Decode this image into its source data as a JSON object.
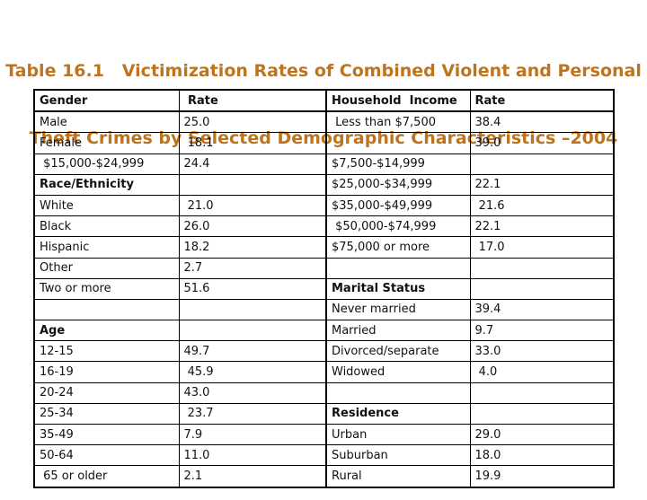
{
  "title": {
    "line1": "Table 16.1   Victimization Rates of Combined Violent and Personal",
    "line2": "Theft Crimes by Selected Demographic Characteristics –2004",
    "color": "#be741f"
  },
  "table": {
    "columns": [
      "Gender",
      "Rate",
      "Household Income",
      "Rate"
    ],
    "rows": [
      {
        "cells": [
          {
            "t": "Gender",
            "b": true
          },
          {
            "t": " Rate",
            "b": true
          },
          {
            "t": "Household  Income",
            "b": true
          },
          {
            "t": "Rate",
            "b": true
          }
        ]
      },
      {
        "cells": [
          {
            "t": "Male"
          },
          {
            "t": "25.0"
          },
          {
            "t": " Less than $7,500"
          },
          {
            "t": "38.4"
          }
        ]
      },
      {
        "cells": [
          {
            "t": "Female"
          },
          {
            "t": " 18.1"
          },
          {
            "t": ""
          },
          {
            "t": "39.0"
          }
        ]
      },
      {
        "cells": [
          {
            "t": " $15,000-$24,999"
          },
          {
            "t": "24.4"
          },
          {
            "t": "$7,500-$14,999"
          },
          {
            "t": ""
          }
        ]
      },
      {
        "cells": [
          {
            "t": "Race/Ethnicity",
            "b": true
          },
          {
            "t": ""
          },
          {
            "t": "$25,000-$34,999"
          },
          {
            "t": "22.1"
          }
        ]
      },
      {
        "cells": [
          {
            "t": "White"
          },
          {
            "t": " 21.0"
          },
          {
            "t": "$35,000-$49,999"
          },
          {
            "t": " 21.6"
          }
        ]
      },
      {
        "cells": [
          {
            "t": "Black"
          },
          {
            "t": "26.0"
          },
          {
            "t": " $50,000-$74,999"
          },
          {
            "t": "22.1"
          }
        ]
      },
      {
        "cells": [
          {
            "t": "Hispanic"
          },
          {
            "t": "18.2"
          },
          {
            "t": "$75,000 or more"
          },
          {
            "t": " 17.0"
          }
        ]
      },
      {
        "cells": [
          {
            "t": "Other"
          },
          {
            "t": "2.7"
          },
          {
            "t": ""
          },
          {
            "t": ""
          }
        ]
      },
      {
        "cells": [
          {
            "t": "Two or more"
          },
          {
            "t": "51.6"
          },
          {
            "t": "Marital Status",
            "b": true
          },
          {
            "t": ""
          }
        ]
      },
      {
        "cells": [
          {
            "t": ""
          },
          {
            "t": ""
          },
          {
            "t": "Never married"
          },
          {
            "t": "39.4"
          }
        ]
      },
      {
        "cells": [
          {
            "t": "Age",
            "b": true
          },
          {
            "t": ""
          },
          {
            "t": "Married"
          },
          {
            "t": "9.7"
          }
        ]
      },
      {
        "cells": [
          {
            "t": "12-15"
          },
          {
            "t": "49.7"
          },
          {
            "t": "Divorced/separate"
          },
          {
            "t": "33.0"
          }
        ]
      },
      {
        "cells": [
          {
            "t": "16-19"
          },
          {
            "t": " 45.9"
          },
          {
            "t": "Widowed"
          },
          {
            "t": " 4.0"
          }
        ]
      },
      {
        "cells": [
          {
            "t": "20-24"
          },
          {
            "t": "43.0"
          },
          {
            "t": ""
          },
          {
            "t": ""
          }
        ]
      },
      {
        "cells": [
          {
            "t": "25-34"
          },
          {
            "t": " 23.7"
          },
          {
            "t": "Residence",
            "b": true
          },
          {
            "t": ""
          }
        ]
      },
      {
        "cells": [
          {
            "t": "35-49"
          },
          {
            "t": "7.9"
          },
          {
            "t": "Urban"
          },
          {
            "t": "29.0"
          }
        ]
      },
      {
        "cells": [
          {
            "t": "50-64"
          },
          {
            "t": "11.0"
          },
          {
            "t": "Suburban"
          },
          {
            "t": "18.0"
          }
        ]
      },
      {
        "cells": [
          {
            "t": " 65 or older"
          },
          {
            "t": "2.1"
          },
          {
            "t": "Rural"
          },
          {
            "t": "19.9"
          }
        ]
      }
    ]
  }
}
